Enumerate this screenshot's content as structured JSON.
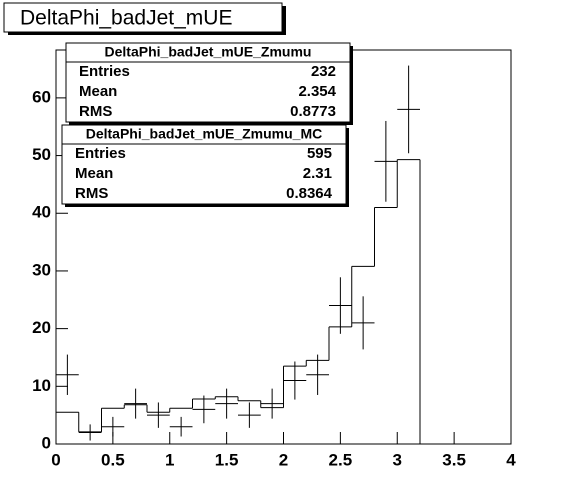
{
  "chart_data": {
    "type": "histogram",
    "title": "DeltaPhi_badJet_mUE",
    "bins": [
      0,
      0.2,
      0.4,
      0.6,
      0.8,
      1.0,
      1.2,
      1.4,
      1.6,
      1.8,
      2.0,
      2.2,
      2.4,
      2.6,
      2.8,
      3.0,
      3.2
    ],
    "series": [
      {
        "name": "DeltaPhi_badJet_mUE_Zmumu",
        "style": "points",
        "color": "#000000",
        "values": [
          12,
          2,
          3,
          7,
          5,
          3,
          6,
          7,
          5,
          7,
          11,
          12,
          24,
          21,
          49,
          58
        ],
        "errors": [
          3.5,
          1.4,
          1.7,
          2.6,
          2.2,
          1.7,
          2.4,
          2.6,
          2.2,
          2.6,
          3.3,
          3.5,
          4.9,
          4.6,
          7,
          7.6
        ],
        "stats": [
          {
            "label": "Entries",
            "value": 232
          },
          {
            "label": "Mean",
            "value": 2.354
          },
          {
            "label": "RMS",
            "value": 0.8773
          }
        ]
      },
      {
        "name": "DeltaPhi_badJet_mUE_Zmumu_MC",
        "style": "step",
        "color": "#000000",
        "values": [
          5.5,
          2.1,
          6.2,
          6.8,
          5.5,
          6.2,
          7.8,
          8.2,
          7.5,
          6.3,
          13.5,
          14.5,
          20.3,
          30.8,
          41,
          49.3
        ],
        "stats": [
          {
            "label": "Entries",
            "value": 595
          },
          {
            "label": "Mean",
            "value": 2.31
          },
          {
            "label": "RMS",
            "value": 0.8364
          }
        ]
      }
    ],
    "xlim": [
      0,
      4
    ],
    "ylim": [
      0,
      68.3
    ],
    "xticks": [
      0,
      0.5,
      1,
      1.5,
      2,
      2.5,
      3,
      3.5,
      4
    ],
    "yticks": [
      0,
      10,
      20,
      30,
      40,
      50,
      60
    ]
  }
}
